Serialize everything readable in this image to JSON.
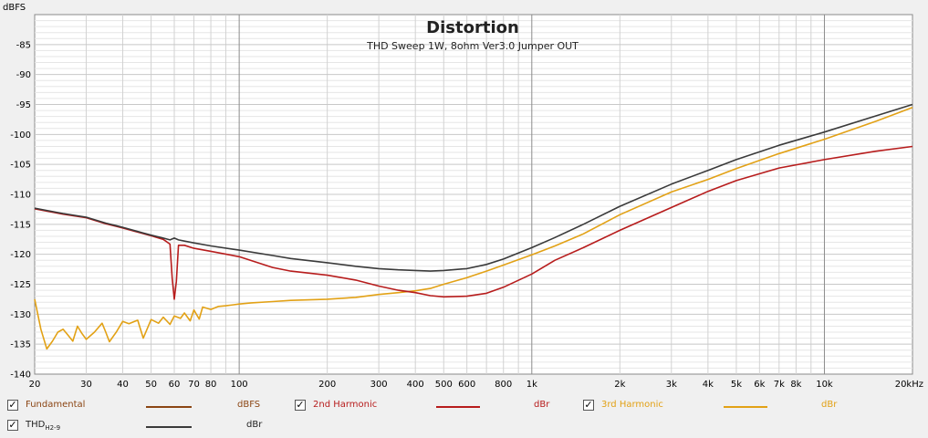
{
  "chart_data": {
    "type": "line",
    "title": "Distortion",
    "subtitle": "THD Sweep 1W, 8ohm Ver3.0 Jumper OUT",
    "ylabel": "dBFS",
    "xlabel": "",
    "xscale": "log",
    "xlim": [
      20,
      20000
    ],
    "ylim": [
      -140,
      -80
    ],
    "yticks": [
      -85,
      -90,
      -95,
      -100,
      -105,
      -110,
      -115,
      -120,
      -125,
      -130,
      -135,
      -140
    ],
    "xticks": [
      {
        "v": 20,
        "label": "20"
      },
      {
        "v": 30,
        "label": "30"
      },
      {
        "v": 40,
        "label": "40"
      },
      {
        "v": 50,
        "label": "50"
      },
      {
        "v": 60,
        "label": "60"
      },
      {
        "v": 70,
        "label": "70"
      },
      {
        "v": 80,
        "label": "80"
      },
      {
        "v": 100,
        "label": "100"
      },
      {
        "v": 200,
        "label": "200"
      },
      {
        "v": 300,
        "label": "300"
      },
      {
        "v": 400,
        "label": "400"
      },
      {
        "v": 500,
        "label": "500"
      },
      {
        "v": 600,
        "label": "600"
      },
      {
        "v": 800,
        "label": "800"
      },
      {
        "v": 1000,
        "label": "1k"
      },
      {
        "v": 2000,
        "label": "2k"
      },
      {
        "v": 3000,
        "label": "3k"
      },
      {
        "v": 4000,
        "label": "4k"
      },
      {
        "v": 5000,
        "label": "5k"
      },
      {
        "v": 6000,
        "label": "6k"
      },
      {
        "v": 7000,
        "label": "7k"
      },
      {
        "v": 8000,
        "label": "8k"
      },
      {
        "v": 10000,
        "label": "10k"
      },
      {
        "v": 20000,
        "label": "20kHz"
      }
    ],
    "grid": true,
    "legend_position": "bottom",
    "series": [
      {
        "name": "THD",
        "color": "#3a3a3a",
        "x": [
          20,
          25,
          30,
          35,
          40,
          45,
          50,
          55,
          58,
          60,
          62,
          65,
          70,
          80,
          100,
          130,
          150,
          200,
          250,
          300,
          350,
          400,
          450,
          500,
          600,
          700,
          800,
          1000,
          1200,
          1500,
          2000,
          3000,
          4000,
          5000,
          7000,
          10000,
          15000,
          20000
        ],
        "y": [
          -112.3,
          -113.2,
          -113.8,
          -114.8,
          -115.5,
          -116.2,
          -116.8,
          -117.3,
          -117.6,
          -117.3,
          -117.6,
          -117.8,
          -118.1,
          -118.6,
          -119.3,
          -120.2,
          -120.7,
          -121.4,
          -122,
          -122.4,
          -122.6,
          -122.7,
          -122.8,
          -122.7,
          -122.4,
          -121.7,
          -120.8,
          -118.9,
          -117.2,
          -115,
          -112,
          -108.3,
          -106,
          -104.2,
          -101.8,
          -99.6,
          -96.9,
          -95
        ]
      },
      {
        "name": "2nd Harmonic",
        "color": "#b71c1c",
        "x": [
          20,
          25,
          30,
          35,
          40,
          45,
          50,
          55,
          58,
          59,
          60,
          61,
          62,
          65,
          70,
          80,
          100,
          130,
          150,
          200,
          250,
          300,
          350,
          400,
          450,
          500,
          600,
          700,
          800,
          1000,
          1200,
          1500,
          2000,
          3000,
          4000,
          5000,
          7000,
          10000,
          15000,
          20000
        ],
        "y": [
          -112.4,
          -113.3,
          -113.9,
          -114.9,
          -115.6,
          -116.3,
          -116.9,
          -117.5,
          -118.3,
          -124,
          -127.5,
          -124.5,
          -118.5,
          -118.5,
          -119,
          -119.5,
          -120.4,
          -122.2,
          -122.8,
          -123.5,
          -124.3,
          -125.3,
          -126,
          -126.4,
          -126.9,
          -127.1,
          -127,
          -126.5,
          -125.5,
          -123.3,
          -121,
          -118.9,
          -116,
          -112.2,
          -109.5,
          -107.7,
          -105.6,
          -104.2,
          -102.8,
          -102
        ]
      },
      {
        "name": "3rd Harmonic",
        "color": "#e2a115",
        "x": [
          20,
          21,
          22,
          23,
          24,
          25,
          26,
          27,
          28,
          29,
          30,
          32,
          34,
          35,
          36,
          38,
          40,
          42,
          45,
          47,
          50,
          53,
          55,
          58,
          60,
          63,
          65,
          68,
          70,
          73,
          75,
          80,
          85,
          90,
          100,
          110,
          130,
          150,
          200,
          250,
          300,
          350,
          400,
          450,
          500,
          600,
          700,
          800,
          1000,
          1200,
          1500,
          2000,
          3000,
          4000,
          5000,
          7000,
          10000,
          15000,
          20000
        ],
        "y": [
          -127.5,
          -132.5,
          -135.8,
          -134.5,
          -133,
          -132.5,
          -133.5,
          -134.5,
          -132,
          -133.2,
          -134.2,
          -133,
          -131.5,
          -133,
          -134.6,
          -133,
          -131.2,
          -131.6,
          -131,
          -134,
          -130.9,
          -131.5,
          -130.5,
          -131.7,
          -130.3,
          -130.7,
          -129.8,
          -131.1,
          -129.3,
          -130.8,
          -128.8,
          -129.2,
          -128.7,
          -128.6,
          -128.3,
          -128.1,
          -127.9,
          -127.7,
          -127.5,
          -127.2,
          -126.7,
          -126.4,
          -126.1,
          -125.7,
          -125,
          -123.9,
          -122.8,
          -121.8,
          -120.1,
          -118.6,
          -116.6,
          -113.4,
          -109.6,
          -107.5,
          -105.7,
          -103.2,
          -100.8,
          -97.8,
          -95.5
        ]
      }
    ]
  },
  "legend": [
    {
      "name": "Fundamental",
      "sub": "",
      "unit": "dBFS",
      "color": "#8b4513",
      "checked": true
    },
    {
      "name": "2nd Harmonic",
      "sub": "",
      "unit": "dBr",
      "color": "#b71c1c",
      "checked": true
    },
    {
      "name": "3rd Harmonic",
      "sub": "",
      "unit": "dBr",
      "color": "#e2a115",
      "checked": true
    },
    {
      "name": "THD",
      "sub": "H2-9",
      "unit": "dBr",
      "color": "#3a3a3a",
      "checked": true
    }
  ],
  "check_glyph": "✓"
}
